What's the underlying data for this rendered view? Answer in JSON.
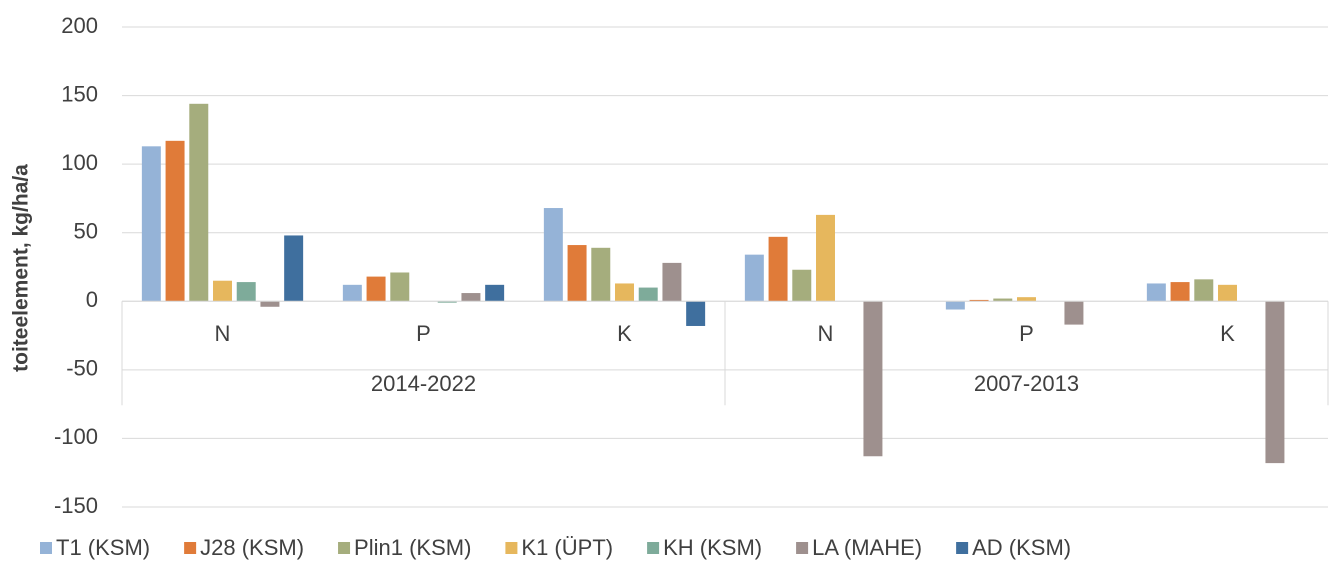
{
  "chart_data": {
    "type": "bar",
    "y_label": "toiteelement, kg/ha/a",
    "category_groups": [
      {
        "name": "2014-2022",
        "categories": [
          "N",
          "P",
          "K"
        ]
      },
      {
        "name": "2007-2013",
        "categories": [
          "N",
          "P",
          "K"
        ]
      }
    ],
    "series": [
      {
        "name": "T1 (KSM)",
        "color": "#95b3d7",
        "values": [
          113,
          12,
          68,
          34,
          -6,
          13
        ]
      },
      {
        "name": "J28 (KSM)",
        "color": "#e07b39",
        "values": [
          117,
          18,
          41,
          47,
          1,
          14
        ]
      },
      {
        "name": "Plin1 (KSM)",
        "color": "#a5ad7d",
        "values": [
          144,
          21,
          39,
          23,
          2,
          16
        ]
      },
      {
        "name": "K1 (ÜPT)",
        "color": "#e6b75d",
        "values": [
          15,
          0,
          13,
          63,
          3,
          12
        ]
      },
      {
        "name": "KH (KSM)",
        "color": "#7eab9a",
        "values": [
          14,
          -1,
          10,
          null,
          null,
          null
        ]
      },
      {
        "name": "LA (MAHE)",
        "color": "#9e908e",
        "values": [
          -4,
          6,
          28,
          -113,
          -17,
          -118
        ]
      },
      {
        "name": "AD (KSM)",
        "color": "#3f6f9e",
        "values": [
          48,
          12,
          -18,
          null,
          null,
          null
        ]
      }
    ],
    "ylim": [
      -150,
      200
    ],
    "yticks": [
      -150,
      -100,
      -50,
      0,
      50,
      100,
      150,
      200
    ],
    "grid": true,
    "legend": "bottom"
  }
}
